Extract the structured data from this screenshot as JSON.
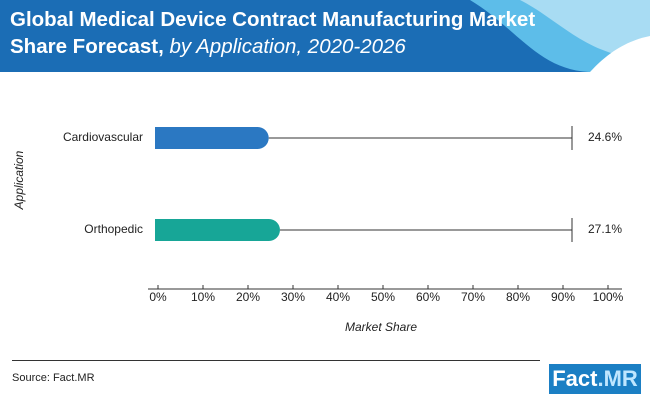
{
  "chart_data": {
    "type": "bar",
    "orientation": "horizontal",
    "title": "Global Medical Device Contract Manufacturing Market Share Forecast,",
    "subtitle": "by Application, 2020-2026",
    "categories": [
      "Cardiovascular",
      "Orthopedic"
    ],
    "values": [
      24.6,
      27.1
    ],
    "value_labels": [
      "24.6%",
      "27.1%"
    ],
    "colors": [
      "#2b78c2",
      "#17a697"
    ],
    "x_label": "Market Share",
    "y_label": "Application",
    "xlim": [
      0,
      100
    ],
    "xticks": [
      {
        "value": 0,
        "label": "0%"
      },
      {
        "value": 10,
        "label": "10%"
      },
      {
        "value": 20,
        "label": "20%"
      },
      {
        "value": 30,
        "label": "30%"
      },
      {
        "value": 40,
        "label": "40%"
      },
      {
        "value": 50,
        "label": "50%"
      },
      {
        "value": 60,
        "label": "60%"
      },
      {
        "value": 70,
        "label": "70%"
      },
      {
        "value": 80,
        "label": "80%"
      },
      {
        "value": 90,
        "label": "90%"
      },
      {
        "value": 100,
        "label": "100%"
      }
    ]
  },
  "source": "Source: Fact.MR",
  "logo": {
    "main": "Fact",
    "accent": ".MR"
  }
}
